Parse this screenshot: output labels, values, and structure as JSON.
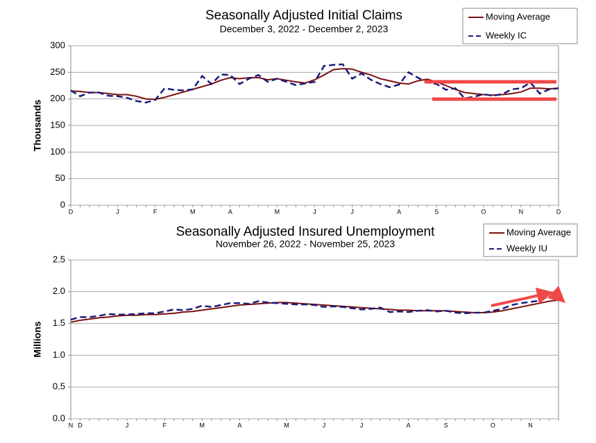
{
  "chart_data": [
    {
      "type": "line",
      "title": "Seasonally Adjusted Initial Claims",
      "subtitle": "December 3, 2022 - December 2, 2023",
      "y_label": "Thousands",
      "categories": [
        "D",
        null,
        null,
        null,
        null,
        "J",
        null,
        null,
        null,
        "F",
        null,
        null,
        null,
        "M",
        null,
        null,
        null,
        "A",
        null,
        null,
        null,
        null,
        "M",
        null,
        null,
        null,
        "J",
        null,
        null,
        null,
        "J",
        null,
        null,
        null,
        null,
        "A",
        null,
        null,
        null,
        "S",
        null,
        null,
        null,
        null,
        "O",
        null,
        null,
        null,
        "N",
        null,
        null,
        null,
        "D"
      ],
      "series": [
        {
          "name": "Moving Average",
          "color": "#7a1010",
          "dash": false,
          "values": [
            215,
            214,
            212,
            212,
            210,
            208,
            208,
            205,
            200,
            199,
            203,
            208,
            213,
            218,
            223,
            228,
            235,
            240,
            238,
            240,
            240,
            236,
            238,
            235,
            232,
            230,
            236,
            245,
            255,
            257,
            256,
            250,
            245,
            238,
            234,
            230,
            228,
            234,
            237,
            232,
            225,
            218,
            212,
            210,
            208,
            207,
            208,
            210,
            213,
            220,
            220,
            219,
            220
          ]
        },
        {
          "name": "Weekly IC",
          "color": "#1a1a7a",
          "dash": true,
          "values": [
            216,
            205,
            212,
            212,
            206,
            205,
            202,
            196,
            193,
            198,
            220,
            217,
            216,
            218,
            243,
            228,
            246,
            245,
            228,
            238,
            245,
            232,
            238,
            232,
            226,
            229,
            232,
            262,
            264,
            265,
            238,
            248,
            236,
            228,
            222,
            227,
            250,
            240,
            231,
            228,
            217,
            220,
            201,
            204,
            209,
            206,
            209,
            218,
            220,
            231,
            210,
            218,
            220
          ]
        }
      ],
      "ylim": [
        0,
        300
      ],
      "yticks": [
        0,
        50,
        100,
        150,
        200,
        250,
        300
      ],
      "grid": true,
      "legend": "top-right"
    },
    {
      "type": "line",
      "title": "Seasonally Adjusted Insured Unemployment",
      "subtitle": "November 26, 2022 - November 25, 2023",
      "y_label": "Millions",
      "categories": [
        "N",
        "D",
        null,
        null,
        null,
        null,
        "J",
        null,
        null,
        null,
        "F",
        null,
        null,
        null,
        "M",
        null,
        null,
        null,
        "A",
        null,
        null,
        null,
        null,
        "M",
        null,
        null,
        null,
        "J",
        null,
        null,
        null,
        "J",
        null,
        null,
        null,
        null,
        "A",
        null,
        null,
        null,
        "S",
        null,
        null,
        null,
        null,
        "O",
        null,
        null,
        null,
        "N",
        null,
        null,
        null
      ],
      "series": [
        {
          "name": "Moving Average",
          "color": "#7a1010",
          "dash": false,
          "values": [
            1.52,
            1.55,
            1.57,
            1.59,
            1.6,
            1.62,
            1.63,
            1.63,
            1.64,
            1.64,
            1.65,
            1.66,
            1.68,
            1.69,
            1.71,
            1.73,
            1.75,
            1.77,
            1.79,
            1.8,
            1.81,
            1.82,
            1.83,
            1.83,
            1.82,
            1.81,
            1.8,
            1.79,
            1.78,
            1.77,
            1.76,
            1.75,
            1.74,
            1.73,
            1.72,
            1.71,
            1.71,
            1.7,
            1.7,
            1.7,
            1.7,
            1.69,
            1.68,
            1.67,
            1.67,
            1.68,
            1.7,
            1.73,
            1.76,
            1.79,
            1.82,
            1.85,
            1.87
          ]
        },
        {
          "name": "Weekly IU",
          "color": "#1a1a7a",
          "dash": true,
          "values": [
            1.56,
            1.6,
            1.6,
            1.62,
            1.65,
            1.64,
            1.64,
            1.65,
            1.66,
            1.66,
            1.69,
            1.72,
            1.71,
            1.73,
            1.78,
            1.76,
            1.79,
            1.82,
            1.82,
            1.81,
            1.85,
            1.83,
            1.82,
            1.81,
            1.8,
            1.8,
            1.79,
            1.76,
            1.77,
            1.76,
            1.74,
            1.72,
            1.73,
            1.75,
            1.68,
            1.69,
            1.68,
            1.7,
            1.71,
            1.69,
            1.7,
            1.67,
            1.66,
            1.67,
            1.67,
            1.7,
            1.73,
            1.79,
            1.82,
            1.84,
            1.86,
            1.93,
            1.86
          ]
        }
      ],
      "ylim": [
        0,
        2.5
      ],
      "yticks": [
        {
          "value": 0,
          "label": "0.0"
        },
        0.5,
        {
          "value": 1,
          "label": "1.0"
        },
        1.5,
        {
          "value": 2,
          "label": "2.0"
        },
        2.5
      ],
      "grid": true,
      "legend": "top-right"
    }
  ]
}
